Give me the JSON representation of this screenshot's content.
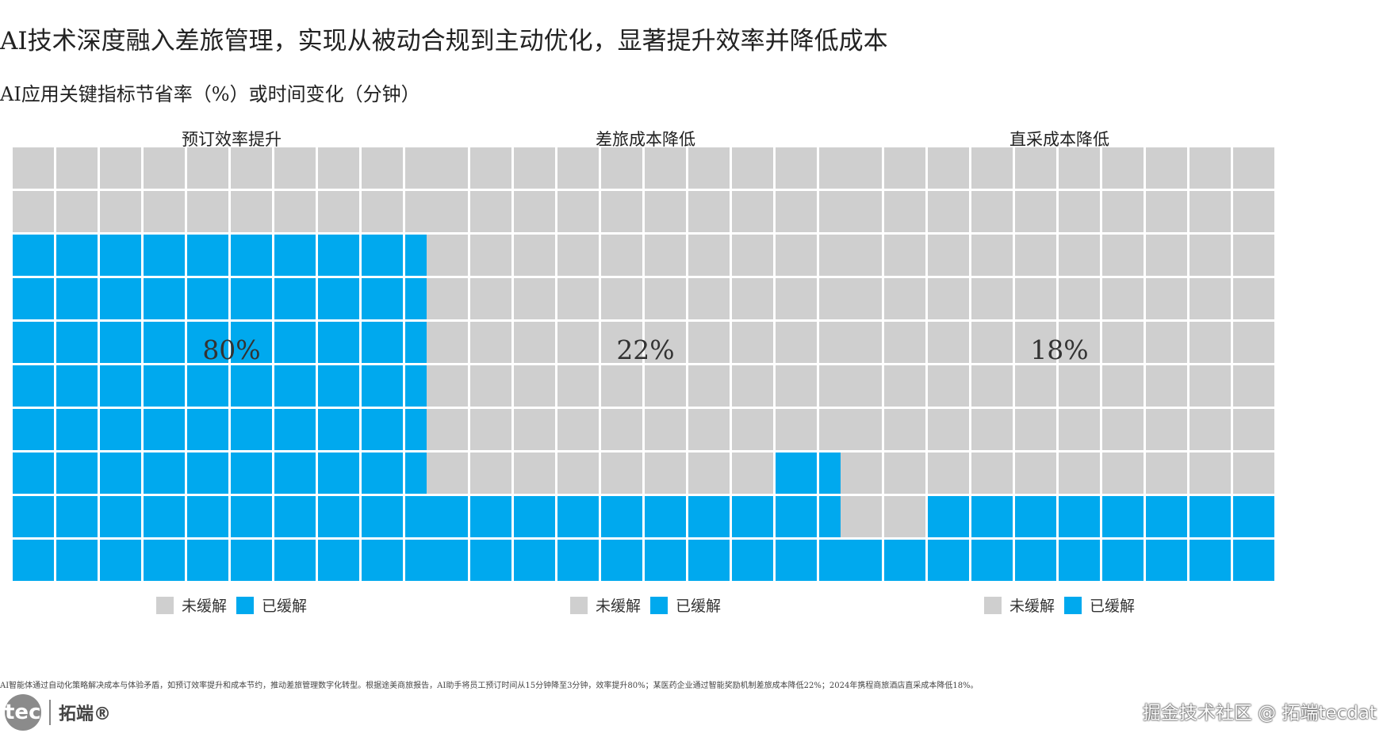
{
  "title": "AI技术深度融入差旅管理，实现从被动合规到主动优化，显著提升效率并降低成本",
  "subtitle": "AI应用关键指标节省率（%）或时间变化（分钟）",
  "colors": {
    "unmitigated": "#cfcfcf",
    "mitigated": "#00a9ee"
  },
  "chart_data": [
    {
      "type": "waffle",
      "title": "预订效率提升",
      "value": 80,
      "value_label": "80%",
      "grid": [
        10,
        10
      ],
      "legend": [
        "未缓解",
        "已缓解"
      ]
    },
    {
      "type": "waffle",
      "title": "差旅成本降低",
      "value": 22,
      "value_label": "22%",
      "grid": [
        10,
        10
      ],
      "legend": [
        "未缓解",
        "已缓解"
      ]
    },
    {
      "type": "waffle",
      "title": "直采成本降低",
      "value": 18,
      "value_label": "18%",
      "grid": [
        10,
        10
      ],
      "legend": [
        "未缓解",
        "已缓解"
      ]
    }
  ],
  "footnote": "AI智能体通过自动化策略解决成本与体验矛盾，如预订效率提升和成本节约，推动差旅管理数字化转型。根据途美商旅报告，AI助手将员工预订时间从15分钟降至3分钟，效率提升80%；某医药企业通过智能奖励机制差旅成本降低22%；2024年携程商旅酒店直采成本降低18%。",
  "logo": {
    "text": "tecdat",
    "cn": "拓端®"
  },
  "watermark": "掘金技术社区 @ 拓端tecdat"
}
